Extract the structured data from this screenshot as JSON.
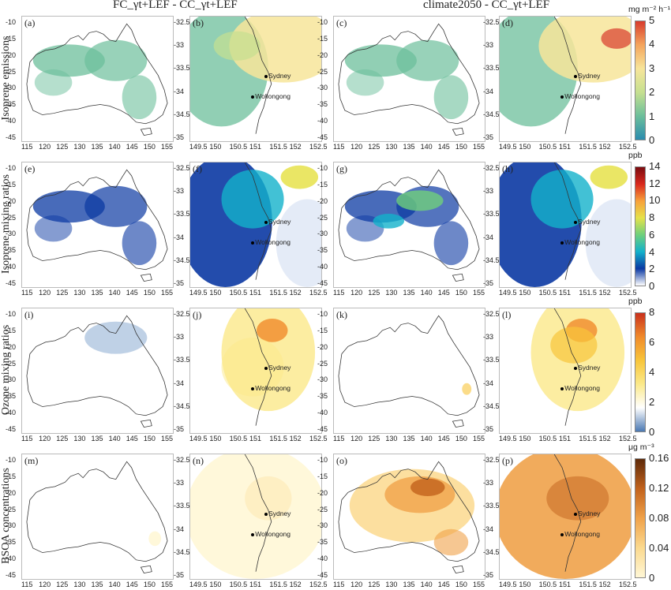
{
  "headers": {
    "left": "FC_γt+LEF - CC_γt+LEF",
    "right": "climate2050 - CC_γt+LEF"
  },
  "rows": [
    {
      "label": "Isoprene emissions",
      "panels": [
        "(a)",
        "(b)",
        "(c)",
        "(d)"
      ],
      "unit": "mg m⁻² h⁻¹",
      "ticks": [
        "5",
        "4",
        "3",
        "2",
        "1",
        "0"
      ],
      "colors": [
        "#d83b2c",
        "#f4a55d",
        "#f7e59a",
        "#c6e090",
        "#6cbf9b",
        "#2b8cae"
      ]
    },
    {
      "label": "Isoprene mixing ratios",
      "panels": [
        "(e)",
        "(f)",
        "(g)",
        "(h)"
      ],
      "unit": "ppb",
      "ticks": [
        "14",
        "12",
        "10",
        "8",
        "6",
        "4",
        "2",
        "0"
      ],
      "colors": [
        "#7a0c10",
        "#d9281d",
        "#f8a13a",
        "#e6e24a",
        "#6fd07c",
        "#13b1cb",
        "#0b39a3",
        "#ffffff"
      ]
    },
    {
      "label": "Ozone mixing ratios",
      "panels": [
        "(i)",
        "(j)",
        "(k)",
        "(l)"
      ],
      "unit": "ppb",
      "ticks": [
        "8",
        "6",
        "4",
        "2",
        "0"
      ],
      "colors": [
        "#c9311c",
        "#f08a2a",
        "#f8c53a",
        "#fbe98a",
        "#ffffff",
        "#4b79b3"
      ]
    },
    {
      "label": "BSOA concentrations",
      "panels": [
        "(m)",
        "(n)",
        "(o)",
        "(p)"
      ],
      "unit": "μg m⁻³",
      "ticks": [
        "0.16",
        "0.12",
        "0.08",
        "0.04",
        "0"
      ],
      "colors": [
        "#5e2a0a",
        "#c2621c",
        "#f0a24a",
        "#fbd98e",
        "#fff7d6"
      ]
    }
  ],
  "australia_axes": {
    "x_ticks": [
      "115",
      "120",
      "125",
      "130",
      "135",
      "140",
      "145",
      "150",
      "155"
    ],
    "y_ticks": [
      "-10",
      "-15",
      "-20",
      "-25",
      "-30",
      "-35",
      "-40",
      "-45"
    ]
  },
  "sydney_axes": {
    "x_ticks": [
      "149.5",
      "150",
      "150.5",
      "151",
      "151.5",
      "152",
      "152.5"
    ],
    "y_ticks": [
      "-32.5",
      "-33",
      "-33.5",
      "-34",
      "-34.5",
      "-35"
    ]
  },
  "cities": {
    "sydney": "Sydney",
    "wollongong": "Wollongong"
  }
}
